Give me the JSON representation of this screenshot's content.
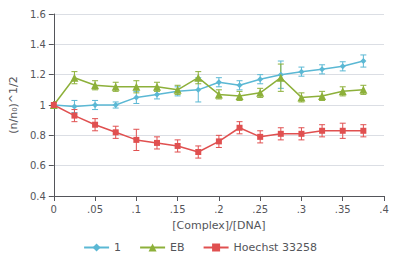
{
  "chart_data": {
    "type": "line",
    "xlabel": "[Complex]/[DNA]",
    "ylabel": "(n/n₀)^1/2",
    "xlim": [
      0,
      0.4
    ],
    "ylim": [
      0.4,
      1.6
    ],
    "xticks": [
      0,
      {
        "value": 0.05,
        "label": ".05"
      },
      {
        "value": 0.1,
        "label": ".1"
      },
      {
        "value": 0.15,
        "label": ".15"
      },
      {
        "value": 0.2,
        "label": ".2"
      },
      {
        "value": 0.25,
        "label": ".25"
      },
      {
        "value": 0.3,
        "label": ".3"
      },
      {
        "value": 0.35,
        "label": ".35"
      },
      {
        "value": 0.4,
        "label": ".4"
      }
    ],
    "yticks": [
      0.4,
      0.6,
      0.8,
      1,
      1.2,
      1.4,
      1.6
    ],
    "grid": true,
    "legend": "bottom",
    "series": [
      {
        "name": "1",
        "color": "#5BB8D4",
        "marker": "diamond",
        "x": [
          0,
          0.025,
          0.05,
          0.075,
          0.1,
          0.125,
          0.15,
          0.175,
          0.2,
          0.225,
          0.25,
          0.275,
          0.3,
          0.325,
          0.35,
          0.375
        ],
        "values": [
          1.0,
          0.99,
          1.0,
          1.0,
          1.05,
          1.07,
          1.09,
          1.1,
          1.15,
          1.13,
          1.17,
          1.2,
          1.22,
          1.235,
          1.255,
          1.29
        ],
        "errors": [
          0.02,
          0.04,
          0.03,
          0.02,
          0.04,
          0.03,
          0.03,
          0.08,
          0.03,
          0.03,
          0.03,
          0.09,
          0.03,
          0.03,
          0.03,
          0.04
        ]
      },
      {
        "name": "EB",
        "color": "#8DB03A",
        "marker": "triangle",
        "x": [
          0,
          0.025,
          0.05,
          0.075,
          0.1,
          0.125,
          0.15,
          0.175,
          0.2,
          0.225,
          0.25,
          0.275,
          0.3,
          0.325,
          0.35,
          0.375
        ],
        "values": [
          1.0,
          1.18,
          1.13,
          1.12,
          1.12,
          1.12,
          1.1,
          1.18,
          1.07,
          1.06,
          1.08,
          1.18,
          1.05,
          1.06,
          1.09,
          1.1
        ],
        "errors": [
          0.02,
          0.04,
          0.03,
          0.03,
          0.04,
          0.03,
          0.03,
          0.04,
          0.03,
          0.03,
          0.03,
          0.09,
          0.03,
          0.03,
          0.03,
          0.03
        ]
      },
      {
        "name": "Hoechst 33258",
        "color": "#E05050",
        "marker": "square",
        "x": [
          0,
          0.025,
          0.05,
          0.075,
          0.1,
          0.125,
          0.15,
          0.175,
          0.2,
          0.225,
          0.25,
          0.275,
          0.3,
          0.325,
          0.35,
          0.375
        ],
        "values": [
          1.0,
          0.93,
          0.87,
          0.82,
          0.77,
          0.75,
          0.73,
          0.69,
          0.76,
          0.85,
          0.79,
          0.81,
          0.81,
          0.83,
          0.83,
          0.83
        ],
        "errors": [
          0.02,
          0.04,
          0.04,
          0.04,
          0.07,
          0.04,
          0.04,
          0.04,
          0.04,
          0.04,
          0.04,
          0.04,
          0.04,
          0.04,
          0.05,
          0.04
        ]
      }
    ]
  }
}
